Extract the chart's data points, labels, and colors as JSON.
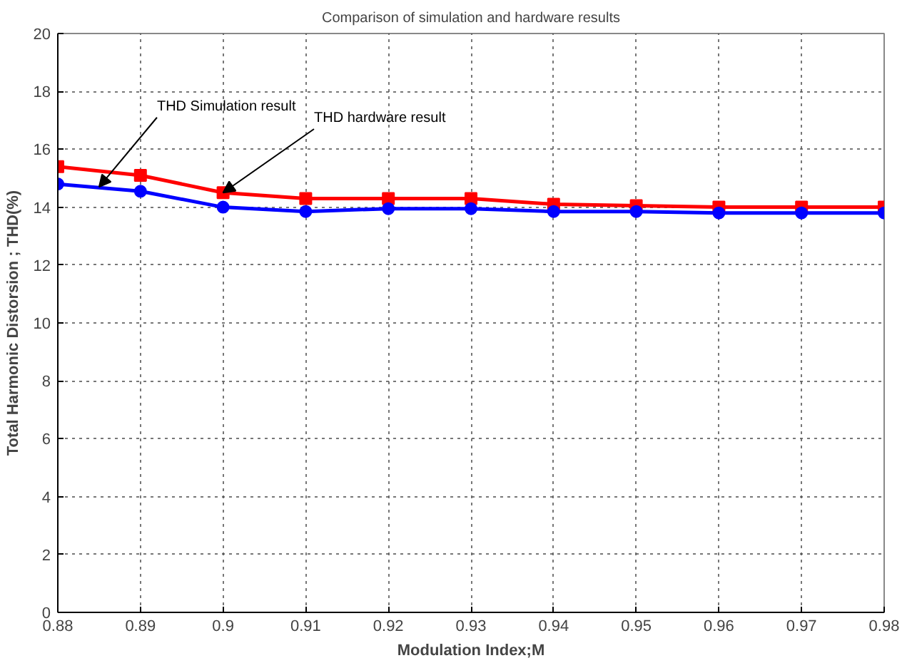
{
  "chart_data": {
    "type": "line",
    "title": "Comparison of simulation and hardware results",
    "xlabel": "Modulation Index;M",
    "ylabel": "Total Harmonic Distorsion ; THD(%)",
    "x": [
      0.88,
      0.89,
      0.9,
      0.91,
      0.92,
      0.93,
      0.94,
      0.95,
      0.96,
      0.97,
      0.98
    ],
    "series": [
      {
        "color": "#ff0000",
        "marker": "square",
        "values": [
          15.4,
          15.1,
          14.5,
          14.3,
          14.3,
          14.3,
          14.1,
          14.05,
          14.0,
          14.0,
          14.0
        ]
      },
      {
        "color": "#0000ff",
        "marker": "circle",
        "values": [
          14.8,
          14.55,
          14.0,
          13.85,
          13.95,
          13.95,
          13.85,
          13.85,
          13.8,
          13.8,
          13.8
        ]
      }
    ],
    "annotations": [
      {
        "text": "THD Simulation result",
        "x": 0.885,
        "y": 14.7
      },
      {
        "text": "THD hardware result",
        "x": 0.9,
        "y": 14.5
      }
    ],
    "xlim": [
      0.88,
      0.98
    ],
    "ylim": [
      0,
      20
    ],
    "xticks": [
      0.88,
      0.89,
      0.9,
      0.91,
      0.92,
      0.93,
      0.94,
      0.95,
      0.96,
      0.97,
      0.98
    ],
    "yticks": [
      0,
      2,
      4,
      6,
      8,
      10,
      12,
      14,
      16,
      18,
      20
    ],
    "grid": true
  }
}
